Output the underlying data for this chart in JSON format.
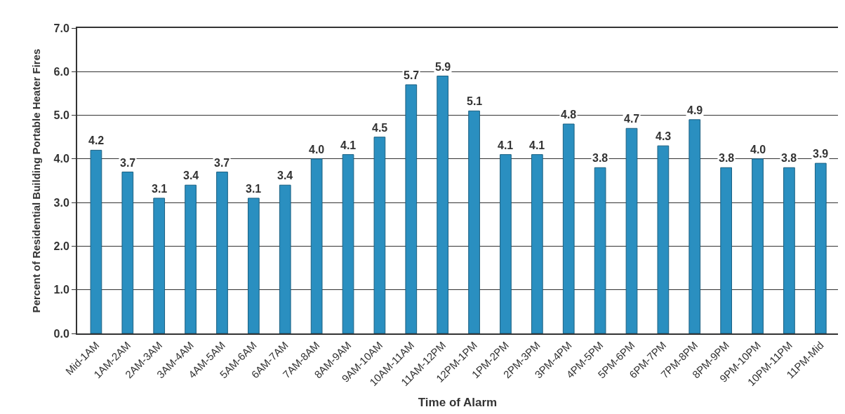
{
  "chart_data": {
    "type": "bar",
    "xlabel": "Time of Alarm",
    "ylabel": "Percent of Residential Building Portable Heater Fires",
    "categories": [
      "Mid-1AM",
      "1AM-2AM",
      "2AM-3AM",
      "3AM-4AM",
      "4AM-5AM",
      "5AM-6AM",
      "6AM-7AM",
      "7AM-8AM",
      "8AM-9AM",
      "9AM-10AM",
      "10AM-11AM",
      "11AM-12PM",
      "12PM-1PM",
      "1PM-2PM",
      "2PM-3PM",
      "3PM-4PM",
      "4PM-5PM",
      "5PM-6PM",
      "6PM-7PM",
      "7PM-8PM",
      "8PM-9PM",
      "9PM-10PM",
      "10PM-11PM",
      "11PM-Mid"
    ],
    "values": [
      4.2,
      3.7,
      3.1,
      3.4,
      3.7,
      3.1,
      3.4,
      4.0,
      4.1,
      4.5,
      5.7,
      5.9,
      5.1,
      4.1,
      4.1,
      4.8,
      3.8,
      4.7,
      4.3,
      4.9,
      3.8,
      4.0,
      3.8,
      3.9
    ],
    "value_labels": [
      "4.2",
      "3.7",
      "3.1",
      "3.4",
      "3.7",
      "3.1",
      "3.4",
      "4.0",
      "4.1",
      "4.5",
      "5.7",
      "5.9",
      "5.1",
      "4.1",
      "4.1",
      "4.8",
      "3.8",
      "4.7",
      "4.3",
      "4.9",
      "3.8",
      "4.0",
      "3.8",
      "3.9"
    ],
    "color": "#2a8fc0",
    "ylim": [
      0,
      7
    ],
    "yticks": [
      {
        "value": 0,
        "label": "0.0"
      },
      {
        "value": 1,
        "label": "1.0"
      },
      {
        "value": 2,
        "label": "2.0"
      },
      {
        "value": 3,
        "label": "3.0"
      },
      {
        "value": 4,
        "label": "4.0"
      },
      {
        "value": 5,
        "label": "5.0"
      },
      {
        "value": 6,
        "label": "6.0"
      },
      {
        "value": 7,
        "label": "7.0"
      }
    ],
    "grid": "y",
    "legend": false
  }
}
